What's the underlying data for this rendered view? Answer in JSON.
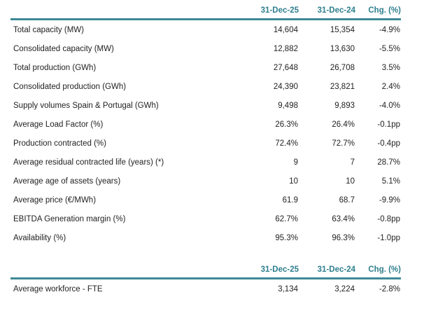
{
  "theme": {
    "accent_text": "#2e7f8e",
    "rule_color": "#3e8a96",
    "body_text": "#1f1f1f",
    "background": "#ffffff"
  },
  "tables": [
    {
      "name": "generation-kpis",
      "header": {
        "col_label": "",
        "col_date_current": "31-Dec-25",
        "col_date_prior": "31-Dec-24",
        "col_change": "Chg. (%)"
      },
      "rows": [
        {
          "label": "Total capacity (MW)",
          "current": "14,604",
          "prior": "15,354",
          "change": "-4.9%"
        },
        {
          "label": "Consolidated capacity (MW)",
          "current": "12,882",
          "prior": "13,630",
          "change": "-5.5%"
        },
        {
          "label": "Total production (GWh)",
          "current": "27,648",
          "prior": "26,708",
          "change": "3.5%"
        },
        {
          "label": "Consolidated production (GWh)",
          "current": "24,390",
          "prior": "23,821",
          "change": "2.4%"
        },
        {
          "label": "Supply volumes Spain & Portugal (GWh)",
          "current": "9,498",
          "prior": "9,893",
          "change": "-4.0%"
        },
        {
          "label": "Average Load Factor (%)",
          "current": "26.3%",
          "prior": "26.4%",
          "change": "-0.1pp"
        },
        {
          "label": "Production contracted (%)",
          "current": "72.4%",
          "prior": "72.7%",
          "change": "-0.4pp"
        },
        {
          "label": "Average residual contracted life (years) (*)",
          "current": "9",
          "prior": "7",
          "change": "28.7%"
        },
        {
          "label": "Average age of assets (years)",
          "current": "10",
          "prior": "10",
          "change": "5.1%"
        },
        {
          "label": "Average price (€/MWh)",
          "current": "61.9",
          "prior": "68.7",
          "change": "-9.9%"
        },
        {
          "label": "EBITDA Generation margin (%)",
          "current": "62.7%",
          "prior": "63.4%",
          "change": "-0.8pp"
        },
        {
          "label": "Availability (%)",
          "current": "95.3%",
          "prior": "96.3%",
          "change": "-1.0pp"
        }
      ]
    },
    {
      "name": "workforce-kpis",
      "header": {
        "col_label": "",
        "col_date_current": "31-Dec-25",
        "col_date_prior": "31-Dec-24",
        "col_change": "Chg. (%)"
      },
      "rows": [
        {
          "label": "Average workforce - FTE",
          "current": "3,134",
          "prior": "3,224",
          "change": "-2.8%"
        }
      ]
    }
  ]
}
